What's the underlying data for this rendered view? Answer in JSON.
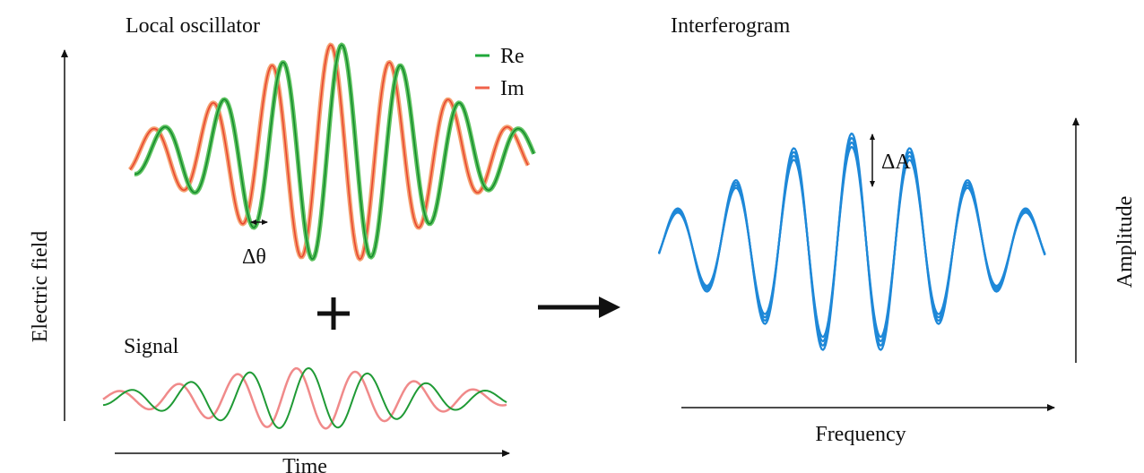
{
  "left_panel": {
    "title": "Local oscillator",
    "legend": [
      "Re",
      "Im"
    ],
    "phase_label": "Δθ",
    "signal_title": "Signal",
    "x_axis_label": "Time",
    "y_axis_label": "Electric field"
  },
  "right_panel": {
    "title": "Interferogram",
    "amplitude_change_label": "ΔA",
    "x_axis_label": "Frequency",
    "y_axis_label": "Amplitude"
  }
}
